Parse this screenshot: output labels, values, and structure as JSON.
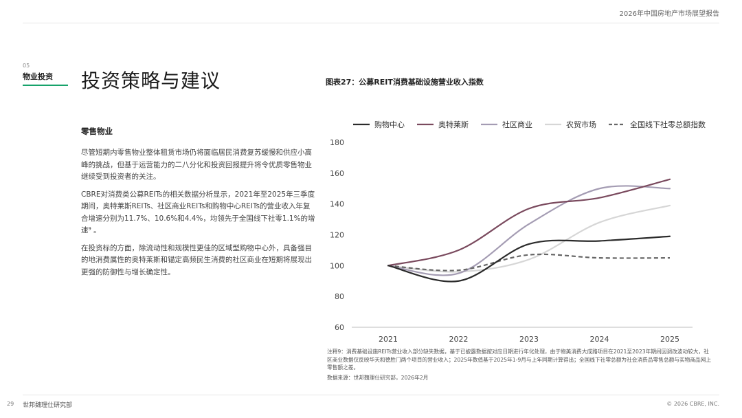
{
  "header": {
    "report_title": "2026年中国房地产市场展望报告"
  },
  "section": {
    "number": "05",
    "name": "物业投资"
  },
  "page_heading": "投资策略与建议",
  "left": {
    "subtitle": "零售物业",
    "paragraphs": [
      "尽管短期内零售物业整体租赁市场仍将面临居民消费复苏缓慢和供应小高峰的挑战，但基于运营能力的二八分化和投资回报提升将令优质零售物业继续受到投资者的关注。",
      "CBRE对消费类公募REITs的相关数据分析显示，2021年至2025年三季度期间，奥特莱斯REITs、社区商业REITs和购物中心REITs的营业收入年复合增速分别为11.7%、10.6%和4.4%，均领先于全国线下社零1.1%的增速⁹ 。",
      "在投资标的方面，除流动性和规模性更佳的区域型购物中心外，具备强目的地消费属性的奥特莱斯和锚定高频民生消费的社区商业在短期将展现出更强的防御性与增长确定性。"
    ]
  },
  "figure": {
    "title": "图表27：公募REIT消费基础设施营业收入指数",
    "note": "注释9：消费基础设施REITs营业收入部分缺失数据，基于已披露数据按对应日期进行年化处理，由于物美消费大成路项目在2021至2023年期间因调改波动较大，社区商业数据仅反映华天和德胜门两个项目的营业收入；2025年数值基于2025年1-9月与上年同期计算得出；全国线下社零总额为社会消费品零售总额与实物商品网上零售额之差。",
    "source": "数据来源：世邦魏理仕研究部，2026年2月"
  },
  "chart_data": {
    "type": "line",
    "x": [
      2021,
      2022,
      2023,
      2024,
      2025
    ],
    "xlabel": "",
    "ylabel": "",
    "ylim": [
      60,
      180
    ],
    "yticks": [
      60,
      80,
      100,
      120,
      140,
      160,
      180
    ],
    "grid": false,
    "legend": "top",
    "series": [
      {
        "name": "购物中心",
        "values": [
          100,
          90,
          114,
          116,
          119
        ],
        "color": "#2b2b2b",
        "dashed": false
      },
      {
        "name": "奥特莱斯",
        "values": [
          100,
          110,
          137,
          144,
          156
        ],
        "color": "#7a4a5e",
        "dashed": false
      },
      {
        "name": "社区商业",
        "values": [
          100,
          95,
          127,
          150,
          150
        ],
        "color": "#a49cb3",
        "dashed": false
      },
      {
        "name": "农贸市场",
        "values": [
          100,
          96,
          104,
          128,
          139
        ],
        "color": "#d6d6d6",
        "dashed": false
      },
      {
        "name": "全国线下社零总额指数",
        "values": [
          100,
          97,
          107,
          105,
          105
        ],
        "color": "#666666",
        "dashed": true
      }
    ]
  },
  "footer": {
    "page_number": "29",
    "org": "世邦魏理仕研究部",
    "copyright": "© 2026 CBRE, INC."
  }
}
